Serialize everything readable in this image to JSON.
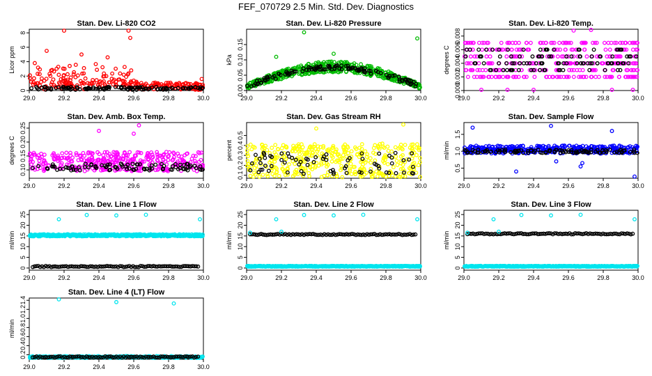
{
  "title": "FEF_070729  2.5 Min. Std. Dev. Diagnostics",
  "colors": {
    "primary_series": "#000000"
  },
  "chart_data": [
    {
      "type": "scatter",
      "title": "Stan. Dev. Li-820 CO2",
      "xlabel": "",
      "ylabel": "Licor ppm",
      "xlim": [
        29.0,
        30.0
      ],
      "ylim": [
        0,
        8.5
      ],
      "xticks": [
        "29.0",
        "29.2",
        "29.4",
        "29.6",
        "29.8",
        "30.0"
      ],
      "yticks": [
        0,
        2,
        4,
        6,
        8
      ],
      "color": "#ff0000",
      "series_shape": {
        "base": 0.6,
        "spread": 0.5,
        "hump": 1.2,
        "hump_end": 0.62,
        "n": 260,
        "base2": 0.3,
        "spread2": 0.2,
        "n2": 120
      },
      "outliers": [
        [
          29.2,
          8.3
        ],
        [
          29.57,
          8.3
        ],
        [
          29.58,
          7.3
        ],
        [
          28.99,
          2.1
        ],
        [
          29.99,
          1.6
        ],
        [
          29.1,
          5.5
        ],
        [
          29.3,
          5.0
        ],
        [
          29.45,
          4.6
        ]
      ]
    },
    {
      "type": "scatter",
      "title": "Stan. Dev. Li-820 Pressure",
      "xlabel": "",
      "ylabel": "kPa",
      "xlim": [
        29.0,
        30.0
      ],
      "ylim": [
        0,
        0.2
      ],
      "xticks": [
        "29.0",
        "29.2",
        "29.4",
        "29.6",
        "29.8",
        "30.0"
      ],
      "yticks": [
        0.0,
        0.05,
        0.1,
        0.15
      ],
      "ytick_labels": [
        "0.00",
        "0.05",
        "0.10",
        "0.15"
      ],
      "color": "#00bb00",
      "series_shape": {
        "arch": true,
        "base": 0.06,
        "peak": 0.08,
        "spread": 0.02,
        "n": 500
      },
      "outliers": [
        [
          29.33,
          0.19
        ],
        [
          29.17,
          0.11
        ],
        [
          29.5,
          0.12
        ],
        [
          29.98,
          0.17
        ]
      ]
    },
    {
      "type": "scatter",
      "title": "Stan. Dev. Li-820 Temp.",
      "xlabel": "",
      "ylabel": "degrees C",
      "xlim": [
        29.0,
        30.0
      ],
      "ylim": [
        0,
        0.009
      ],
      "xticks": [
        "29.0",
        "29.2",
        "29.4",
        "29.6",
        "29.8",
        "30.0"
      ],
      "yticks": [
        0,
        0.002,
        0.004,
        0.006,
        0.008
      ],
      "ytick_labels": [
        "0.000",
        "0.002",
        "0.004",
        "0.006",
        "0.008"
      ],
      "color": "#ff00ff",
      "series_shape": {
        "levels": [
          0.0,
          0.002,
          0.003,
          0.004,
          0.005,
          0.006,
          0.007
        ],
        "n": 360
      },
      "outliers": [
        [
          29.63,
          0.0088
        ],
        [
          29.73,
          0.0089
        ],
        [
          29.1,
          0.0
        ],
        [
          29.25,
          0.0
        ],
        [
          29.4,
          0.0
        ],
        [
          29.85,
          0.0
        ],
        [
          29.97,
          0.0
        ]
      ]
    },
    {
      "type": "scatter",
      "title": "Stan. Dev. Amb. Box Temp.",
      "xlabel": "",
      "ylabel": "degrees C",
      "xlim": [
        29.0,
        30.0
      ],
      "ylim": [
        0.07,
        0.27
      ],
      "xticks": [
        "29.0",
        "29.2",
        "29.4",
        "29.6",
        "29.8",
        "30.0"
      ],
      "yticks": [
        0.1,
        0.15,
        0.2,
        0.25
      ],
      "ytick_labels": [
        "0.10",
        "0.15",
        "0.20",
        "0.25"
      ],
      "color": "#ff00ff",
      "series_shape": {
        "base": 0.13,
        "spread": 0.035,
        "n": 360,
        "base2": 0.11,
        "spread2": 0.012,
        "n2": 90
      },
      "outliers": [
        [
          29.63,
          0.26
        ],
        [
          29.4,
          0.24
        ],
        [
          29.6,
          0.23
        ]
      ]
    },
    {
      "type": "scatter",
      "title": "Stan. Dev. Gas Stream RH",
      "xlabel": "",
      "ylabel": "percent",
      "xlim": [
        29.0,
        30.0
      ],
      "ylim": [
        0.07,
        0.63
      ],
      "xticks": [
        "29.0",
        "29.2",
        "29.4",
        "29.6",
        "29.8",
        "30.0"
      ],
      "yticks": [
        0.1,
        0.2,
        0.3,
        0.4,
        0.5
      ],
      "ytick_labels": [
        "0.1",
        "0.2",
        "0.3",
        "0.4",
        "0.5"
      ],
      "color": "#ffff00",
      "series_shape": {
        "base": 0.25,
        "spread": 0.17,
        "n": 400,
        "base2": 0.22,
        "spread2": 0.11,
        "n2": 70
      },
      "outliers": [
        [
          29.9,
          0.61
        ],
        [
          29.4,
          0.57
        ]
      ]
    },
    {
      "type": "scatter",
      "title": "Stan. Dev. Sample Flow",
      "xlabel": "",
      "ylabel": "ml/min",
      "xlim": [
        29.0,
        30.0
      ],
      "ylim": [
        0.2,
        1.85
      ],
      "xticks": [
        "29.0",
        "29.2",
        "29.4",
        "29.6",
        "29.8",
        "30.0"
      ],
      "yticks": [
        0.5,
        1.0,
        1.5
      ],
      "ytick_labels": [
        "0.5",
        "1.0",
        "1.5"
      ],
      "color": "#0000ff",
      "series_shape": {
        "base": 1.05,
        "spread": 0.12,
        "n": 380,
        "base2": 1.0,
        "spread2": 0.05,
        "n2": 110
      },
      "outliers": [
        [
          29.05,
          1.7
        ],
        [
          29.5,
          1.75
        ],
        [
          29.3,
          0.4
        ],
        [
          29.67,
          0.55
        ],
        [
          29.68,
          0.65
        ],
        [
          29.98,
          0.25
        ],
        [
          29.85,
          1.6
        ],
        [
          29.53,
          0.7
        ]
      ]
    },
    {
      "type": "scatter",
      "title": "Stan. Dev. Line 1 Flow",
      "xlabel": "",
      "ylabel": "ml/min",
      "xlim": [
        29.0,
        30.0
      ],
      "ylim": [
        -1,
        27
      ],
      "xticks": [
        "29.0",
        "29.2",
        "29.4",
        "29.6",
        "29.8",
        "30.0"
      ],
      "yticks": [
        0,
        5,
        10,
        15,
        20,
        25
      ],
      "color": "#00e5ee",
      "series_shape": {
        "band": true,
        "cyan_level": 15.3,
        "cyan_spread": 0.5,
        "black_level": 0.7,
        "n": 420
      },
      "outliers": [
        [
          29.17,
          22.8
        ],
        [
          29.33,
          24.8
        ],
        [
          29.5,
          24.6
        ],
        [
          29.67,
          24.9
        ],
        [
          29.98,
          22.8
        ]
      ]
    },
    {
      "type": "scatter",
      "title": "Stan. Dev. Line 2 Flow",
      "xlabel": "",
      "ylabel": "ml/min",
      "xlim": [
        29.0,
        30.0
      ],
      "ylim": [
        -1,
        27
      ],
      "xticks": [
        "29.0",
        "29.2",
        "29.4",
        "29.6",
        "29.8",
        "30.0"
      ],
      "yticks": [
        0,
        5,
        10,
        15,
        20,
        25
      ],
      "color": "#00e5ee",
      "series_shape": {
        "band": true,
        "cyan_level": 0.8,
        "cyan_spread": 0.2,
        "black_level": 15.7,
        "n": 420
      },
      "outliers": [
        [
          29.17,
          22.8
        ],
        [
          29.33,
          24.8
        ],
        [
          29.5,
          24.6
        ],
        [
          29.67,
          24.9
        ],
        [
          29.98,
          22.8
        ],
        [
          29.02,
          16.5
        ],
        [
          29.2,
          17.0
        ]
      ]
    },
    {
      "type": "scatter",
      "title": "Stan. Dev. Line 3 Flow",
      "xlabel": "",
      "ylabel": "ml/min",
      "xlim": [
        29.0,
        30.0
      ],
      "ylim": [
        -1,
        27
      ],
      "xticks": [
        "29.0",
        "29.2",
        "29.4",
        "29.6",
        "29.8",
        "30.0"
      ],
      "yticks": [
        0,
        5,
        10,
        15,
        20,
        25
      ],
      "color": "#00e5ee",
      "series_shape": {
        "band": true,
        "cyan_level": 0.8,
        "cyan_spread": 0.2,
        "black_level": 16.0,
        "n": 420
      },
      "outliers": [
        [
          29.17,
          22.8
        ],
        [
          29.33,
          24.8
        ],
        [
          29.5,
          24.6
        ],
        [
          29.67,
          24.9
        ],
        [
          29.98,
          22.8
        ],
        [
          29.02,
          16.5
        ],
        [
          29.2,
          17.0
        ]
      ]
    },
    {
      "type": "scatter",
      "title": "Stan. Dev. Line 4 (LT) Flow",
      "xlabel": "",
      "ylabel": "ml/min",
      "xlim": [
        29.0,
        30.0
      ],
      "ylim": [
        0.1,
        1.45
      ],
      "xticks": [
        "29.0",
        "29.2",
        "29.4",
        "29.6",
        "29.8",
        "30.0"
      ],
      "yticks": [
        0.2,
        0.4,
        0.6,
        0.8,
        1.0,
        1.2,
        1.4
      ],
      "ytick_labels": [
        "0.2",
        "0.4",
        "0.6",
        "0.8",
        "1.0",
        "1.2",
        "1.4"
      ],
      "color": "#00e5ee",
      "series_shape": {
        "band": true,
        "cyan_level": 0.15,
        "cyan_spread": 0.02,
        "black_level": 0.15,
        "n": 260
      },
      "outliers": [
        [
          29.17,
          1.42
        ],
        [
          29.5,
          1.36
        ],
        [
          29.83,
          1.33
        ]
      ]
    }
  ]
}
